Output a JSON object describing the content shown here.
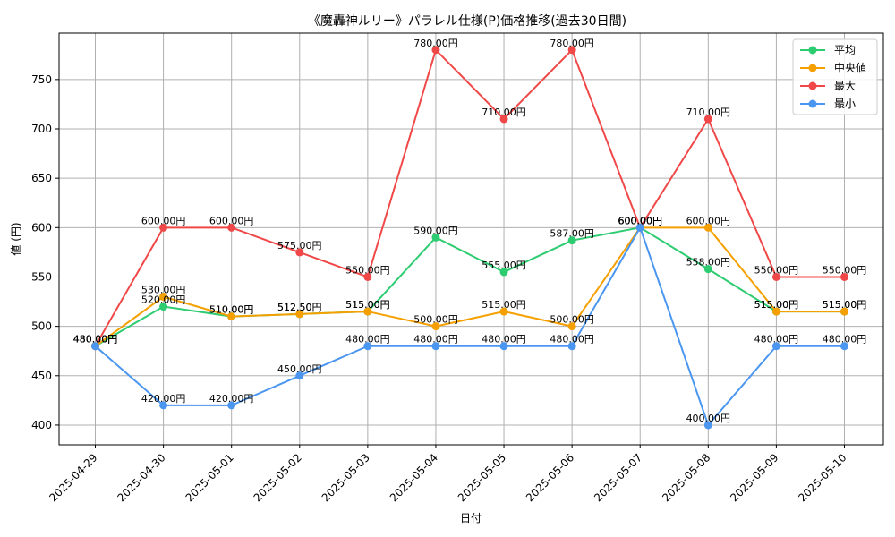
{
  "chart_data": {
    "type": "line",
    "title": "《魔轟神ルリー》パラレル仕様(P)価格推移(過去30日間)",
    "xlabel": "日付",
    "ylabel": "値 (円)",
    "categories": [
      "2025-04-29",
      "2025-04-30",
      "2025-05-01",
      "2025-05-02",
      "2025-05-03",
      "2025-05-04",
      "2025-05-05",
      "2025-05-06",
      "2025-05-07",
      "2025-05-08",
      "2025-05-09",
      "2025-05-10"
    ],
    "ylim": [
      380,
      797
    ],
    "yticks": [
      400,
      450,
      500,
      550,
      600,
      650,
      700,
      750
    ],
    "grid": true,
    "legend_position": "top-right",
    "label_suffix": "円",
    "series": [
      {
        "name": "平均",
        "color": "#2ecc71",
        "values": [
          480,
          520,
          510,
          512.5,
          515,
          590,
          555,
          587,
          600,
          558,
          515,
          515
        ]
      },
      {
        "name": "中央値",
        "color": "#f5a000",
        "values": [
          480,
          530,
          510,
          512.5,
          515,
          500,
          515,
          500,
          600,
          600,
          515,
          515
        ]
      },
      {
        "name": "最大",
        "color": "#f04848",
        "values": [
          480,
          600,
          600,
          575,
          550,
          780,
          710,
          780,
          600,
          710,
          550,
          550
        ]
      },
      {
        "name": "最小",
        "color": "#4a96f0",
        "values": [
          480,
          420,
          420,
          450,
          480,
          480,
          480,
          480,
          600,
          400,
          480,
          480
        ]
      }
    ]
  }
}
